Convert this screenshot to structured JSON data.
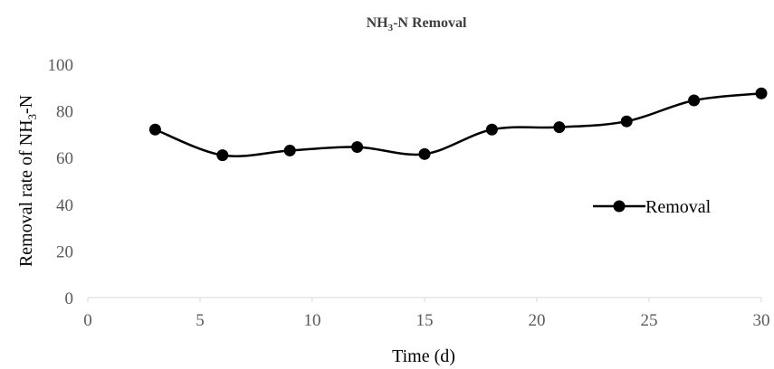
{
  "chart_data": {
    "type": "line",
    "title": {
      "main": "NH",
      "sub": "3",
      "rest": "-N Removal"
    },
    "xlabel": "Time (d)",
    "ylabel": {
      "main": "Removal rate of NH",
      "sub": "3",
      "rest": "-N"
    },
    "xlim": [
      0,
      30
    ],
    "ylim": [
      0,
      100
    ],
    "x_ticks": [
      0,
      5,
      10,
      15,
      20,
      25,
      30
    ],
    "y_ticks": [
      0,
      20,
      40,
      60,
      80,
      100
    ],
    "grid": false,
    "legend_position": "right",
    "series": [
      {
        "name": "Removal",
        "color": "#000000",
        "smooth": true,
        "x": [
          3,
          6,
          9,
          12,
          15,
          18,
          21,
          24,
          27,
          30
        ],
        "y": [
          72,
          61,
          63,
          64.5,
          61.5,
          72,
          73,
          75.5,
          84.5,
          87.5
        ]
      }
    ]
  }
}
